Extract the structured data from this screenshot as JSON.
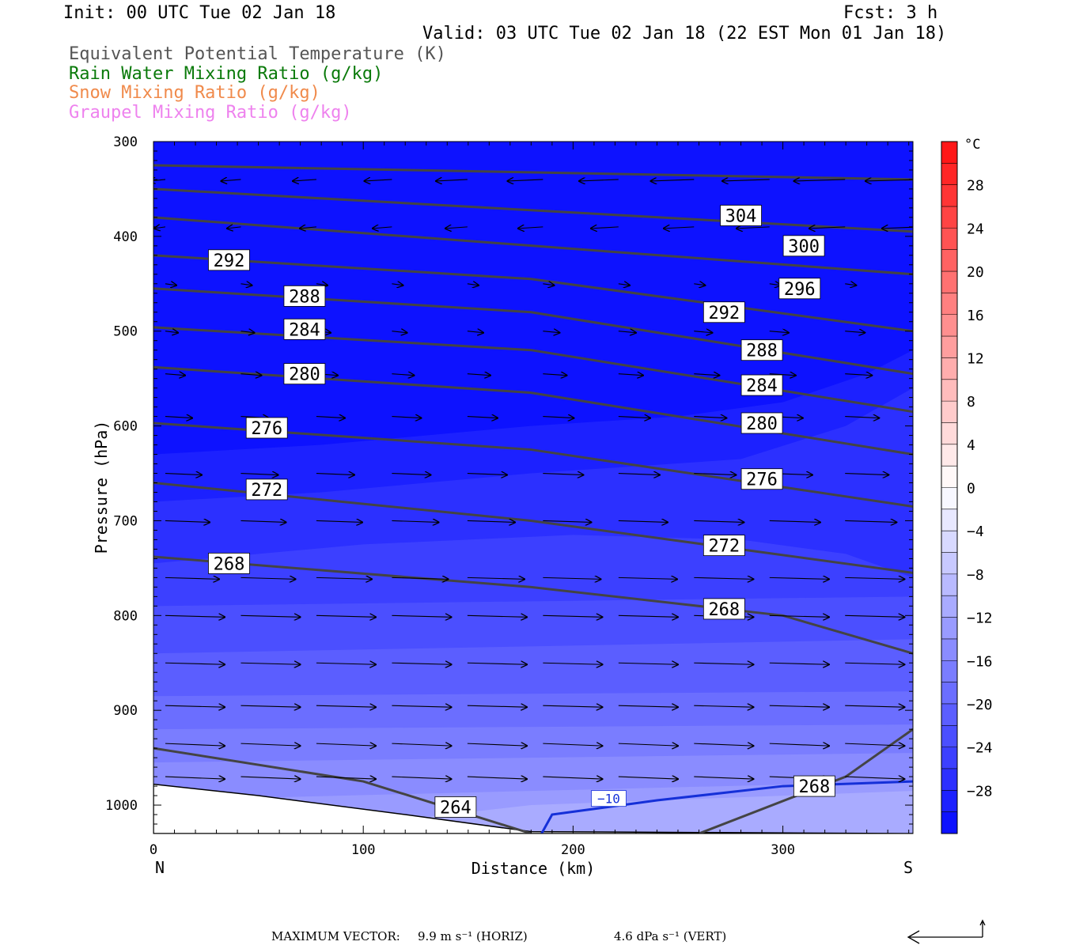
{
  "header": {
    "init": "Init: 00 UTC Tue 02 Jan 18",
    "fcst": "Fcst:    3 h",
    "valid": "Valid: 03 UTC Tue 02 Jan 18 (22 EST Mon 01 Jan 18)"
  },
  "legend": [
    {
      "label": "Equivalent Potential Temperature (K)",
      "color": "#555555"
    },
    {
      "label": "Rain Water Mixing Ratio (g/kg)",
      "color": "#0a7a0a"
    },
    {
      "label": "Snow Mixing Ratio (g/kg)",
      "color": "#f08a4b"
    },
    {
      "label": "Graupel Mixing Ratio (g/kg)",
      "color": "#ee82ee"
    }
  ],
  "footer": {
    "label": "MAXIMUM VECTOR:",
    "horiz": "9.9 m s⁻¹ (HORIZ)",
    "vert": "4.6 dPa s⁻¹ (VERT)"
  },
  "chart_data": {
    "type": "heatmap",
    "xlabel": "Distance (km)",
    "ylabel": "Pressure (hPa)",
    "xlim": [
      0,
      362
    ],
    "ylim": [
      1030,
      300
    ],
    "x_ticks": [
      0,
      100,
      200,
      300
    ],
    "y_ticks": [
      300,
      400,
      500,
      600,
      700,
      800,
      900,
      1000
    ],
    "x_end_labels": {
      "left": "N",
      "right": "S"
    },
    "colorbar": {
      "unit": "°C",
      "levels": [
        32,
        30,
        28,
        26,
        24,
        22,
        20,
        18,
        16,
        14,
        12,
        10,
        8,
        6,
        4,
        2,
        0,
        -2,
        -4,
        -6,
        -8,
        -10,
        -12,
        -14,
        -16,
        -18,
        -20,
        -22,
        -24,
        -26,
        -28,
        -30,
        -32
      ],
      "tick_labels": [
        "28",
        "24",
        "20",
        "16",
        "12",
        "8",
        "4",
        "0",
        "−4",
        "−8",
        "−12",
        "−16",
        "−20",
        "−24",
        "−28"
      ],
      "tick_values": [
        28,
        24,
        20,
        16,
        12,
        8,
        4,
        0,
        -4,
        -8,
        -12,
        -16,
        -20,
        -24,
        -28
      ]
    },
    "temperature_bands": [
      {
        "temp": -31,
        "top": [
          [
            0,
            300
          ],
          [
            362,
            300
          ]
        ]
      },
      {
        "temp": -29,
        "top": [
          [
            0,
            630
          ],
          [
            80,
            620
          ],
          [
            180,
            600
          ],
          [
            250,
            590
          ],
          [
            300,
            575
          ],
          [
            340,
            545
          ],
          [
            362,
            520
          ]
        ]
      },
      {
        "temp": -27,
        "top": [
          [
            0,
            680
          ],
          [
            80,
            670
          ],
          [
            180,
            650
          ],
          [
            280,
            635
          ],
          [
            330,
            600
          ],
          [
            362,
            560
          ]
        ]
      },
      {
        "temp": -25,
        "top": [
          [
            0,
            745
          ],
          [
            100,
            725
          ],
          [
            200,
            715
          ],
          [
            280,
            720
          ],
          [
            330,
            735
          ],
          [
            362,
            760
          ]
        ]
      },
      {
        "temp": -23,
        "top": [
          [
            0,
            790
          ],
          [
            362,
            780
          ]
        ]
      },
      {
        "temp": -21,
        "top": [
          [
            0,
            840
          ],
          [
            362,
            825
          ]
        ]
      },
      {
        "temp": -19,
        "top": [
          [
            0,
            885
          ],
          [
            362,
            880
          ]
        ]
      },
      {
        "temp": -17,
        "top": [
          [
            0,
            920
          ],
          [
            362,
            915
          ]
        ]
      },
      {
        "temp": -15,
        "top": [
          [
            0,
            955
          ],
          [
            362,
            945
          ]
        ]
      },
      {
        "temp": -13,
        "top": [
          [
            0,
            995
          ],
          [
            362,
            975
          ]
        ]
      },
      {
        "temp": -11,
        "top": [
          [
            60,
            1030
          ],
          [
            180,
            1000
          ],
          [
            362,
            985
          ]
        ]
      }
    ],
    "theta_e_contours": [
      {
        "level": 304,
        "pts": [
          [
            0,
            325
          ],
          [
            362,
            340
          ]
        ],
        "label_at": [
          280,
          378
        ]
      },
      {
        "level": 300,
        "pts": [
          [
            0,
            350
          ],
          [
            362,
            395
          ]
        ],
        "label_at": [
          310,
          410
        ]
      },
      {
        "level": 296,
        "pts": [
          [
            0,
            380
          ],
          [
            362,
            440
          ]
        ],
        "label_at": [
          308,
          455
        ]
      },
      {
        "level": 292,
        "pts": [
          [
            0,
            420
          ],
          [
            180,
            445
          ],
          [
            362,
            500
          ]
        ],
        "label_at": [
          36,
          425
        ]
      },
      {
        "level": 292,
        "pts": [],
        "label_at": [
          272,
          480
        ]
      },
      {
        "level": 288,
        "pts": [
          [
            0,
            455
          ],
          [
            180,
            480
          ],
          [
            362,
            545
          ]
        ],
        "label_at": [
          72,
          463
        ]
      },
      {
        "level": 288,
        "pts": [],
        "label_at": [
          290,
          520
        ]
      },
      {
        "level": 284,
        "pts": [
          [
            0,
            496
          ],
          [
            180,
            520
          ],
          [
            362,
            585
          ]
        ],
        "label_at": [
          72,
          498
        ]
      },
      {
        "level": 284,
        "pts": [],
        "label_at": [
          290,
          557
        ]
      },
      {
        "level": 280,
        "pts": [
          [
            0,
            538
          ],
          [
            180,
            565
          ],
          [
            362,
            630
          ]
        ],
        "label_at": [
          72,
          545
        ]
      },
      {
        "level": 280,
        "pts": [],
        "label_at": [
          290,
          597
        ]
      },
      {
        "level": 276,
        "pts": [
          [
            0,
            597
          ],
          [
            180,
            625
          ],
          [
            362,
            685
          ]
        ],
        "label_at": [
          54,
          602
        ]
      },
      {
        "level": 276,
        "pts": [],
        "label_at": [
          290,
          656
        ]
      },
      {
        "level": 272,
        "pts": [
          [
            0,
            660
          ],
          [
            180,
            700
          ],
          [
            362,
            755
          ]
        ],
        "label_at": [
          54,
          667
        ]
      },
      {
        "level": 272,
        "pts": [],
        "label_at": [
          272,
          726
        ]
      },
      {
        "level": 268,
        "pts": [
          [
            0,
            738
          ],
          [
            180,
            770
          ],
          [
            300,
            800
          ],
          [
            362,
            840
          ]
        ],
        "label_at": [
          36,
          745
        ]
      },
      {
        "level": 268,
        "pts": [],
        "label_at": [
          272,
          793
        ]
      },
      {
        "level": 268,
        "pts": [
          [
            260,
            1030
          ],
          [
            330,
            970
          ],
          [
            362,
            920
          ]
        ],
        "label_at": [
          315,
          980
        ]
      },
      {
        "level": 264,
        "pts": [
          [
            0,
            940
          ],
          [
            100,
            975
          ],
          [
            180,
            1030
          ]
        ],
        "label_at": [
          144,
          1002
        ]
      }
    ],
    "isotherm": {
      "level": -10,
      "label": "−10",
      "color": "#1530d8",
      "pts": [
        [
          185,
          1030
        ],
        [
          190,
          1010
        ],
        [
          240,
          995
        ],
        [
          300,
          980
        ],
        [
          362,
          975
        ]
      ],
      "label_at": [
        217,
        993
      ]
    },
    "terrain": [
      [
        0,
        978
      ],
      [
        50,
        990
      ],
      [
        120,
        1010
      ],
      [
        180,
        1028
      ],
      [
        362,
        1030
      ]
    ],
    "vectors_note": "Wind vectors: westward aloft, eastward in mid/low levels"
  }
}
